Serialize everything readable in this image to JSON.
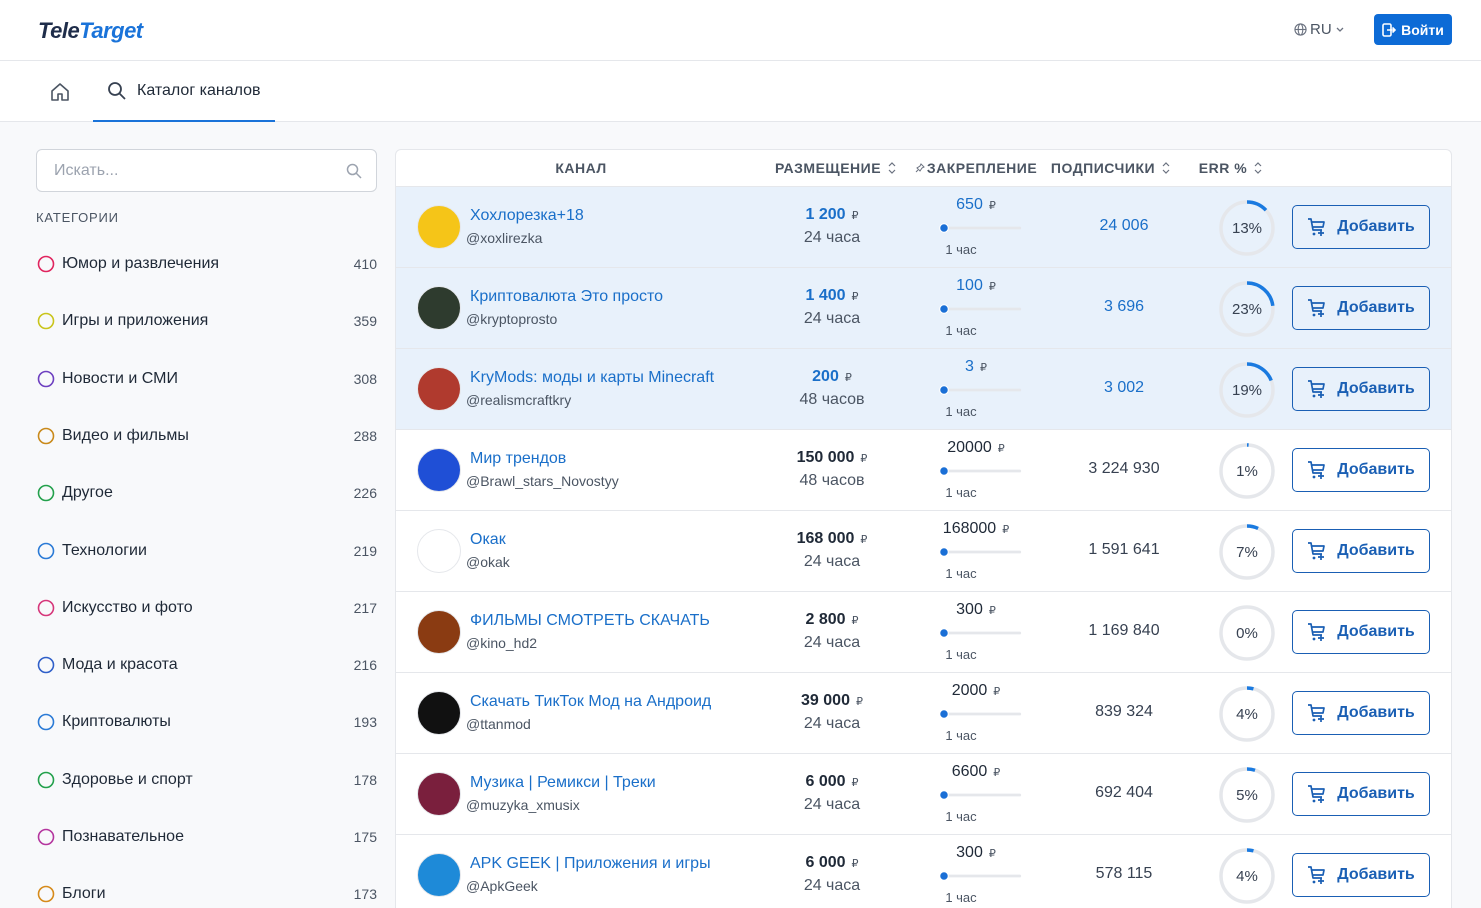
{
  "header": {
    "logo": {
      "part1": "Tele",
      "part2": "Target"
    },
    "language": "RU",
    "login": "Войти"
  },
  "nav": {
    "tabs": [
      "Каталог каналов"
    ]
  },
  "sidebar": {
    "search_placeholder": "Искать...",
    "categories_title": "КАТЕГОРИИ",
    "categories": [
      {
        "name": "Юмор и развлечения",
        "count": 410
      },
      {
        "name": "Игры и приложения",
        "count": 359
      },
      {
        "name": "Новости и СМИ",
        "count": 308
      },
      {
        "name": "Видео и фильмы",
        "count": 288
      },
      {
        "name": "Другое",
        "count": 226
      },
      {
        "name": "Технологии",
        "count": 219
      },
      {
        "name": "Искусство и фото",
        "count": 217
      },
      {
        "name": "Мода и красота",
        "count": 216
      },
      {
        "name": "Криптовалюты",
        "count": 193
      },
      {
        "name": "Здоровье и спорт",
        "count": 178
      },
      {
        "name": "Познавательное",
        "count": 175
      },
      {
        "name": "Блоги",
        "count": 173
      }
    ]
  },
  "table": {
    "columns": [
      "КАНАЛ",
      "РАЗМЕЩЕНИЕ",
      "ЗАКРЕПЛЕНИЕ",
      "ПОДПИСЧИКИ",
      "ERR %"
    ],
    "currency": "₽",
    "add_button": "Добавить",
    "rows": [
      {
        "name": "Хохлорезка+18",
        "handle": "@xoxlirezka",
        "price": "1 200",
        "duration": "24 часа",
        "pin_price": "650",
        "pin_duration": "1 час",
        "subscribers": "24 006",
        "err": {
          "value": 13,
          "label": "13%"
        },
        "promoted": true
      },
      {
        "name": "Криптовалюта Это просто",
        "handle": "@kryptoprosto",
        "price": "1 400",
        "duration": "24 часа",
        "pin_price": "100",
        "pin_duration": "1 час",
        "subscribers": "3 696",
        "err": {
          "value": 23,
          "label": "23%"
        },
        "promoted": true
      },
      {
        "name": "KryMods: моды и карты Minecraft",
        "handle": "@realismcraftkry",
        "price": "200",
        "duration": "48 часов",
        "pin_price": "3",
        "pin_duration": "1 час",
        "subscribers": "3 002",
        "err": {
          "value": 19,
          "label": "19%"
        },
        "promoted": true
      },
      {
        "name": "Мир трендов",
        "handle": "@Brawl_stars_Novostyy",
        "price": "150 000",
        "duration": "48 часов",
        "pin_price": "20000",
        "pin_duration": "1 час",
        "subscribers": "3 224 930",
        "err": {
          "value": 1,
          "label": "1%"
        },
        "promoted": false
      },
      {
        "name": "Окак",
        "handle": "@okak",
        "price": "168 000",
        "duration": "24 часа",
        "pin_price": "168000",
        "pin_duration": "1 час",
        "subscribers": "1 591 641",
        "err": {
          "value": 7,
          "label": "7%"
        },
        "promoted": false
      },
      {
        "name": "ФИЛЬМЫ СМОТРЕТЬ СКАЧАТЬ",
        "handle": "@kino_hd2",
        "price": "2 800",
        "duration": "24 часа",
        "pin_price": "300",
        "pin_duration": "1 час",
        "subscribers": "1 169 840",
        "err": {
          "value": 0,
          "label": "0%"
        },
        "promoted": false
      },
      {
        "name": "Скачать ТикТок Мод на Андроид",
        "handle": "@ttanmod",
        "price": "39 000",
        "duration": "24 часа",
        "pin_price": "2000",
        "pin_duration": "1 час",
        "subscribers": "839 324",
        "err": {
          "value": 4,
          "label": "4%"
        },
        "promoted": false
      },
      {
        "name": "Музика | Ремикси | Треки",
        "handle": "@muzyka_xmusix",
        "price": "6 000",
        "duration": "24 часа",
        "pin_price": "6600",
        "pin_duration": "1 час",
        "subscribers": "692 404",
        "err": {
          "value": 5,
          "label": "5%"
        },
        "promoted": false
      },
      {
        "name": "APK GEEK | Приложения и игры",
        "handle": "@ApkGeek",
        "price": "6 000",
        "duration": "24 часа",
        "pin_price": "300",
        "pin_duration": "1 час",
        "subscribers": "578 115",
        "err": {
          "value": 4,
          "label": "4%"
        },
        "promoted": false
      }
    ]
  }
}
